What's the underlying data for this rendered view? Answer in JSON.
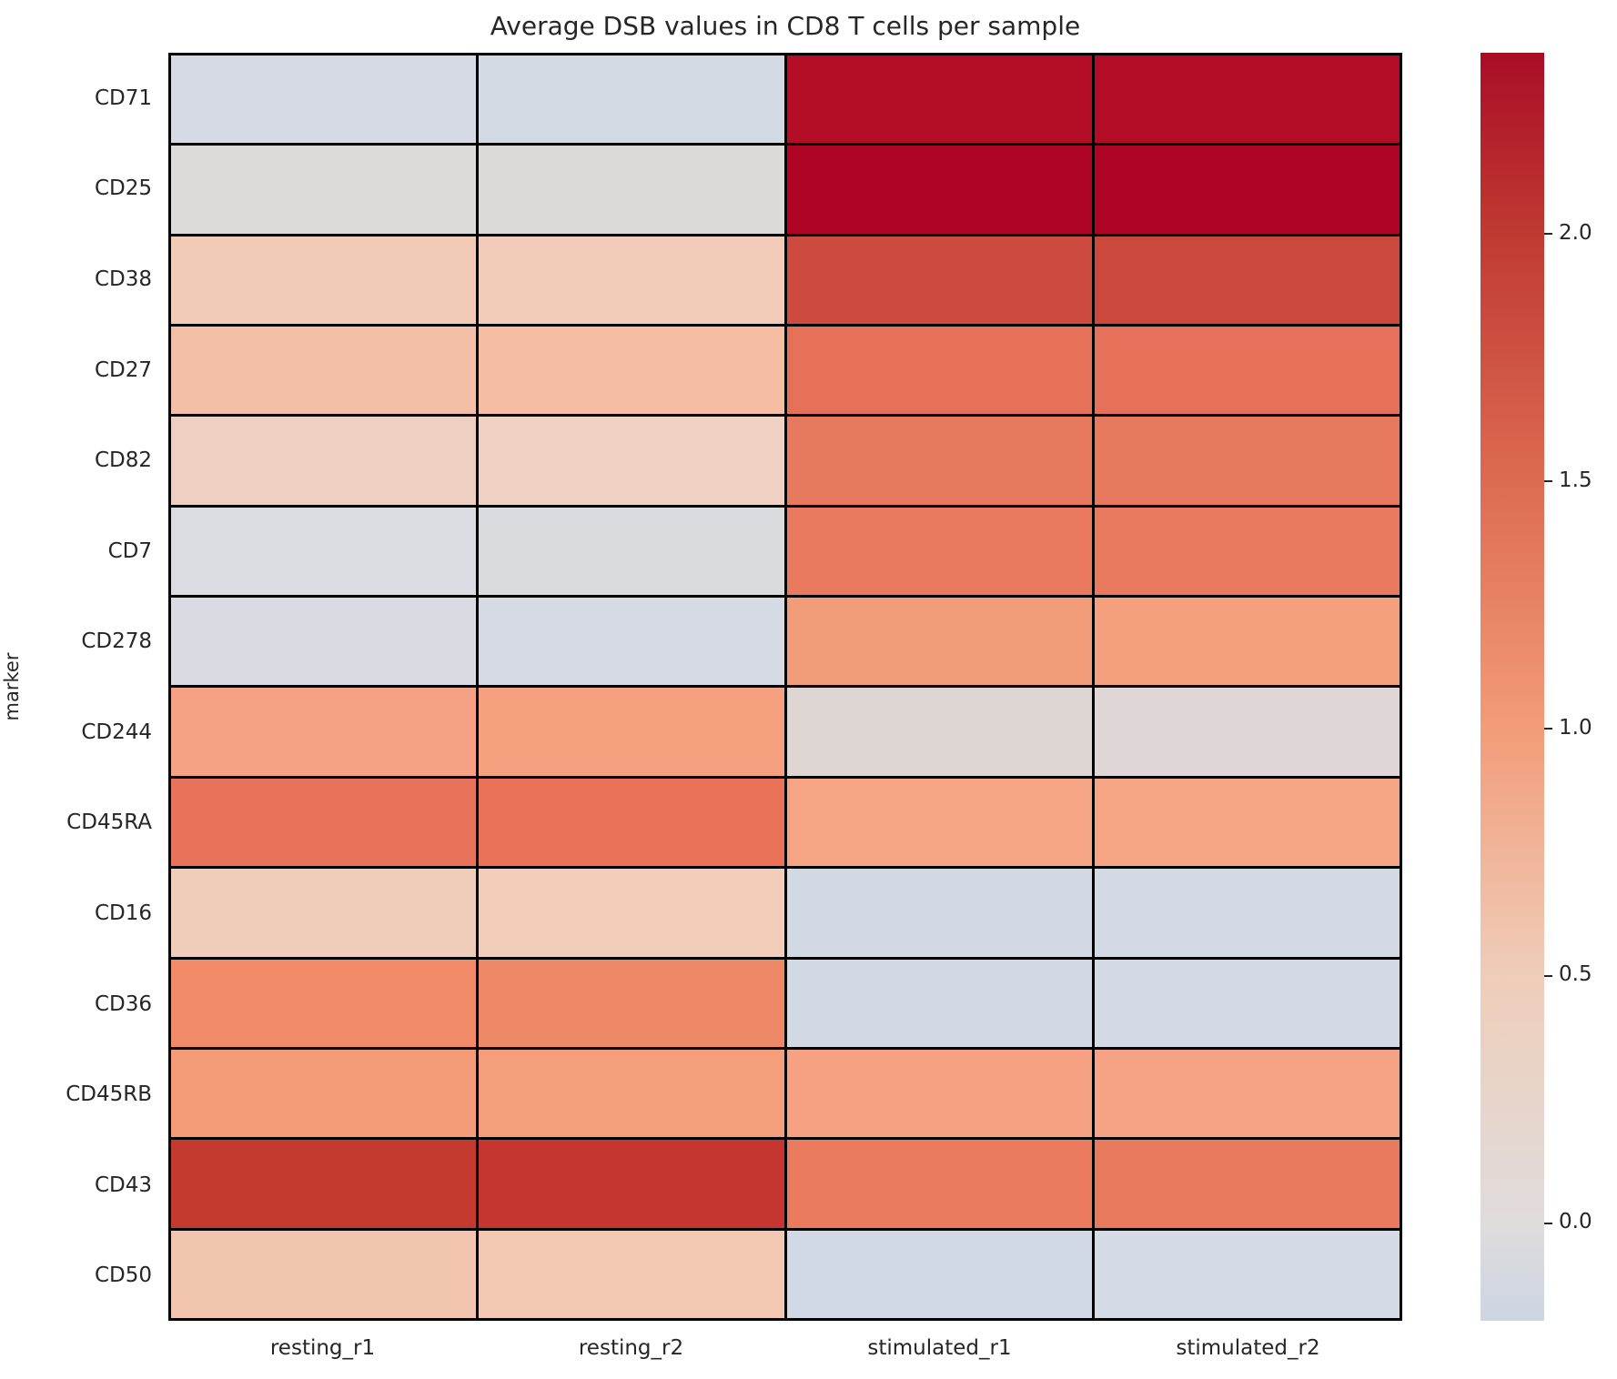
{
  "chart_data": {
    "type": "heatmap",
    "title": "Average DSB values in CD8 T cells per sample",
    "xlabel": "",
    "ylabel": "marker",
    "columns": [
      "resting_r1",
      "resting_r2",
      "stimulated_r1",
      "stimulated_r2"
    ],
    "rows": [
      "CD71",
      "CD25",
      "CD38",
      "CD27",
      "CD82",
      "CD7",
      "CD278",
      "CD244",
      "CD45RA",
      "CD16",
      "CD36",
      "CD45RB",
      "CD43",
      "CD50"
    ],
    "values": [
      [
        -0.12,
        -0.12,
        2.3,
        2.31
      ],
      [
        0.02,
        0.03,
        2.36,
        2.36
      ],
      [
        0.52,
        0.51,
        1.86,
        1.87
      ],
      [
        0.63,
        0.65,
        1.41,
        1.43
      ],
      [
        0.45,
        0.43,
        1.35,
        1.35
      ],
      [
        -0.06,
        -0.04,
        1.33,
        1.33
      ],
      [
        -0.08,
        -0.09,
        1.0,
        0.97
      ],
      [
        0.97,
        0.98,
        0.07,
        0.06
      ],
      [
        1.39,
        1.41,
        0.9,
        0.9
      ],
      [
        0.49,
        0.5,
        -0.11,
        -0.11
      ],
      [
        1.21,
        1.23,
        -0.12,
        -0.12
      ],
      [
        1.0,
        0.99,
        0.93,
        0.92
      ],
      [
        2.02,
        2.04,
        1.31,
        1.32
      ],
      [
        0.56,
        0.54,
        -0.13,
        -0.14
      ]
    ],
    "cell_colors": [
      [
        "#d5dae4",
        "#d4dae4",
        "#b40e27",
        "#b30c27"
      ],
      [
        "#dcdbd9",
        "#dbdad7",
        "#b00424",
        "#b00424"
      ],
      [
        "#f2cbb7",
        "#f2ccb8",
        "#cc4a3e",
        "#cb483c"
      ],
      [
        "#f3c0a7",
        "#f5bda4",
        "#e57258",
        "#e5715a"
      ],
      [
        "#eed0c2",
        "#efd2c4",
        "#e7795f",
        "#e7795f"
      ],
      [
        "#d9dce1",
        "#d9dcdf",
        "#e97a60",
        "#e97a5f"
      ],
      [
        "#d8dbe1",
        "#d6dae2",
        "#f29c7a",
        "#f49f7d"
      ],
      [
        "#f5a183",
        "#f5a07e",
        "#ded6d3",
        "#ded7d6"
      ],
      [
        "#e8735c",
        "#e97258",
        "#f5a584",
        "#f5a584"
      ],
      [
        "#f0cdbb",
        "#f2cdb9",
        "#d3d9e4",
        "#d3d9e5"
      ],
      [
        "#f08a67",
        "#ee8967",
        "#d2d8e4",
        "#d3d9e5"
      ],
      [
        "#f49c78",
        "#f49e7c",
        "#f5a182",
        "#f5a384"
      ],
      [
        "#c43a2e",
        "#c63630",
        "#ea7b5e",
        "#e97a5e"
      ],
      [
        "#f2c6ae",
        "#f2c8b2",
        "#d2d9e6",
        "#d4dbe7"
      ]
    ],
    "grid_line_color": "#000000",
    "colorbar": {
      "vmin": -0.2,
      "vmax": 2.37,
      "ticks": [
        {
          "label": "2.0",
          "pos": 0.1428
        },
        {
          "label": "1.5",
          "pos": 0.3379
        },
        {
          "label": "1.0",
          "pos": 0.533
        },
        {
          "label": "0.5",
          "pos": 0.7281
        },
        {
          "label": "0.0",
          "pos": 0.9232
        }
      ],
      "gradient": [
        {
          "pos": 0.0,
          "color": "#a90d27"
        },
        {
          "pos": 0.1428,
          "color": "#c03a31"
        },
        {
          "pos": 0.3379,
          "color": "#dc6b53"
        },
        {
          "pos": 0.533,
          "color": "#f29c79"
        },
        {
          "pos": 0.7281,
          "color": "#efcdb9"
        },
        {
          "pos": 0.9232,
          "color": "#dfdcdc"
        },
        {
          "pos": 1.0,
          "color": "#cdd5e3"
        }
      ]
    }
  }
}
